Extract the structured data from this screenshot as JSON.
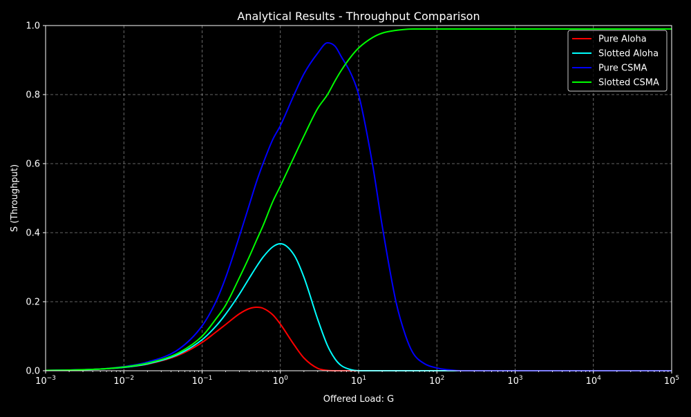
{
  "chart_data": {
    "type": "line",
    "title": "Analytical Results - Throughput Comparison",
    "xlabel": "Offered Load: G",
    "ylabel": "S (Throughput)",
    "xscale": "log",
    "xlim": [
      0.001,
      100000
    ],
    "ylim": [
      0,
      1.0
    ],
    "grid": true,
    "legend_position": "top-right",
    "x_ticks": [
      {
        "value": 0.001,
        "base": "10",
        "exp": "−3"
      },
      {
        "value": 0.01,
        "base": "10",
        "exp": "−2"
      },
      {
        "value": 0.1,
        "base": "10",
        "exp": "−1"
      },
      {
        "value": 1,
        "base": "10",
        "exp": "0"
      },
      {
        "value": 10,
        "base": "10",
        "exp": "1"
      },
      {
        "value": 100,
        "base": "10",
        "exp": "2"
      },
      {
        "value": 1000,
        "base": "10",
        "exp": "3"
      },
      {
        "value": 10000,
        "base": "10",
        "exp": "4"
      },
      {
        "value": 100000,
        "base": "10",
        "exp": "5"
      }
    ],
    "y_ticks": [
      {
        "value": 0.0,
        "label": "0.0"
      },
      {
        "value": 0.2,
        "label": "0.2"
      },
      {
        "value": 0.4,
        "label": "0.4"
      },
      {
        "value": 0.6,
        "label": "0.6"
      },
      {
        "value": 0.8,
        "label": "0.8"
      },
      {
        "value": 1.0,
        "label": "1.0"
      }
    ],
    "x": [
      0.001,
      0.002,
      0.005,
      0.01,
      0.02,
      0.05,
      0.1,
      0.15,
      0.2,
      0.3,
      0.4,
      0.5,
      0.6,
      0.8,
      1,
      1.5,
      2,
      3,
      4,
      5,
      6,
      8,
      10,
      15,
      20,
      30,
      40,
      50,
      70,
      100,
      150,
      200,
      500,
      1000,
      10000,
      100000
    ],
    "series": [
      {
        "name": "Pure Aloha",
        "color": "#ff0000",
        "values": [
          0.001,
          0.002,
          0.005,
          0.01,
          0.019,
          0.045,
          0.082,
          0.112,
          0.134,
          0.165,
          0.18,
          0.184,
          0.181,
          0.162,
          0.135,
          0.075,
          0.037,
          0.007,
          0.001,
          0.0,
          0.0,
          0.0,
          0.0,
          0.0,
          0.0,
          0.0,
          0.0,
          0.0,
          0.0,
          0.0,
          0.0,
          0.0,
          0.0,
          0.0,
          0.0,
          0.0
        ]
      },
      {
        "name": "Slotted Aloha",
        "color": "#00ffff",
        "values": [
          0.001,
          0.002,
          0.005,
          0.01,
          0.02,
          0.048,
          0.09,
          0.129,
          0.164,
          0.222,
          0.268,
          0.303,
          0.329,
          0.359,
          0.368,
          0.335,
          0.271,
          0.149,
          0.073,
          0.034,
          0.015,
          0.003,
          0.0,
          0.0,
          0.0,
          0.0,
          0.0,
          0.0,
          0.0,
          0.0,
          0.0,
          0.0,
          0.0,
          0.0,
          0.0,
          0.0
        ]
      },
      {
        "name": "Pure CSMA",
        "color": "#0000ff",
        "values": [
          0.001,
          0.002,
          0.005,
          0.012,
          0.025,
          0.062,
          0.13,
          0.2,
          0.27,
          0.39,
          0.48,
          0.55,
          0.6,
          0.67,
          0.71,
          0.8,
          0.86,
          0.92,
          0.95,
          0.94,
          0.91,
          0.86,
          0.8,
          0.6,
          0.42,
          0.2,
          0.1,
          0.05,
          0.02,
          0.008,
          0.002,
          0.0,
          0.0,
          0.0,
          0.0,
          0.0
        ]
      },
      {
        "name": "Slotted CSMA",
        "color": "#00ff00",
        "values": [
          0.001,
          0.002,
          0.005,
          0.011,
          0.022,
          0.052,
          0.1,
          0.15,
          0.19,
          0.27,
          0.33,
          0.38,
          0.42,
          0.49,
          0.535,
          0.62,
          0.68,
          0.76,
          0.8,
          0.84,
          0.87,
          0.91,
          0.935,
          0.965,
          0.978,
          0.986,
          0.989,
          0.99,
          0.99,
          0.99,
          0.99,
          0.99,
          0.99,
          0.99,
          0.99,
          0.99
        ]
      }
    ]
  }
}
